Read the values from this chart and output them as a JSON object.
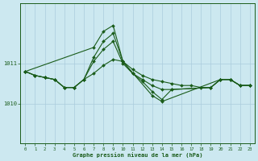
{
  "background_color": "#cce8f0",
  "plot_bg_color": "#cce8f0",
  "grid_color": "#aaccdd",
  "line_color": "#1a5c1a",
  "marker_color": "#1a5c1a",
  "xlabel": "Graphe pression niveau de la mer (hPa)",
  "ylim": [
    1009.0,
    1012.5
  ],
  "xlim": [
    -0.5,
    23.5
  ],
  "yticks": [
    1010,
    1011
  ],
  "xticks": [
    0,
    1,
    2,
    3,
    4,
    5,
    6,
    7,
    8,
    9,
    10,
    11,
    12,
    13,
    14,
    15,
    16,
    17,
    18,
    19,
    20,
    21,
    22,
    23
  ],
  "series_data": {
    "s1": [
      [
        0,
        1010.8
      ],
      [
        1,
        1010.7
      ],
      [
        2,
        1010.65
      ],
      [
        3,
        1010.6
      ],
      [
        4,
        1010.4
      ],
      [
        5,
        1010.4
      ],
      [
        6,
        1010.6
      ],
      [
        7,
        1010.75
      ],
      [
        8,
        1010.95
      ],
      [
        9,
        1011.1
      ],
      [
        10,
        1011.05
      ],
      [
        11,
        1010.85
      ],
      [
        12,
        1010.7
      ],
      [
        13,
        1010.6
      ],
      [
        14,
        1010.55
      ],
      [
        15,
        1010.5
      ],
      [
        16,
        1010.45
      ],
      [
        17,
        1010.45
      ],
      [
        18,
        1010.4
      ],
      [
        19,
        1010.4
      ],
      [
        20,
        1010.6
      ],
      [
        21,
        1010.6
      ],
      [
        22,
        1010.45
      ],
      [
        23,
        1010.45
      ]
    ],
    "s2": [
      [
        0,
        1010.8
      ],
      [
        1,
        1010.7
      ],
      [
        2,
        1010.65
      ],
      [
        3,
        1010.6
      ],
      [
        4,
        1010.4
      ],
      [
        5,
        1010.4
      ],
      [
        6,
        1010.6
      ],
      [
        7,
        1011.05
      ],
      [
        8,
        1011.35
      ],
      [
        9,
        1011.55
      ],
      [
        10,
        1011.0
      ],
      [
        11,
        1010.75
      ],
      [
        12,
        1010.6
      ],
      [
        13,
        1010.45
      ],
      [
        14,
        1010.35
      ],
      [
        15,
        1010.35
      ],
      [
        19,
        1010.4
      ],
      [
        20,
        1010.6
      ],
      [
        21,
        1010.6
      ],
      [
        22,
        1010.45
      ],
      [
        23,
        1010.45
      ]
    ],
    "s3": [
      [
        0,
        1010.8
      ],
      [
        1,
        1010.7
      ],
      [
        2,
        1010.65
      ],
      [
        3,
        1010.6
      ],
      [
        4,
        1010.4
      ],
      [
        5,
        1010.4
      ],
      [
        6,
        1010.6
      ],
      [
        7,
        1011.15
      ],
      [
        8,
        1011.55
      ],
      [
        9,
        1011.75
      ],
      [
        10,
        1011.05
      ],
      [
        11,
        1010.75
      ],
      [
        12,
        1010.55
      ],
      [
        13,
        1010.3
      ],
      [
        14,
        1010.1
      ],
      [
        15,
        1010.35
      ],
      [
        19,
        1010.4
      ],
      [
        20,
        1010.6
      ],
      [
        21,
        1010.6
      ],
      [
        22,
        1010.45
      ],
      [
        23,
        1010.45
      ]
    ],
    "s4": [
      [
        0,
        1010.8
      ],
      [
        7,
        1011.4
      ],
      [
        8,
        1011.8
      ],
      [
        9,
        1011.95
      ],
      [
        10,
        1011.05
      ],
      [
        13,
        1010.2
      ],
      [
        14,
        1010.05
      ],
      [
        20,
        1010.6
      ],
      [
        21,
        1010.6
      ],
      [
        22,
        1010.45
      ],
      [
        23,
        1010.45
      ]
    ]
  }
}
